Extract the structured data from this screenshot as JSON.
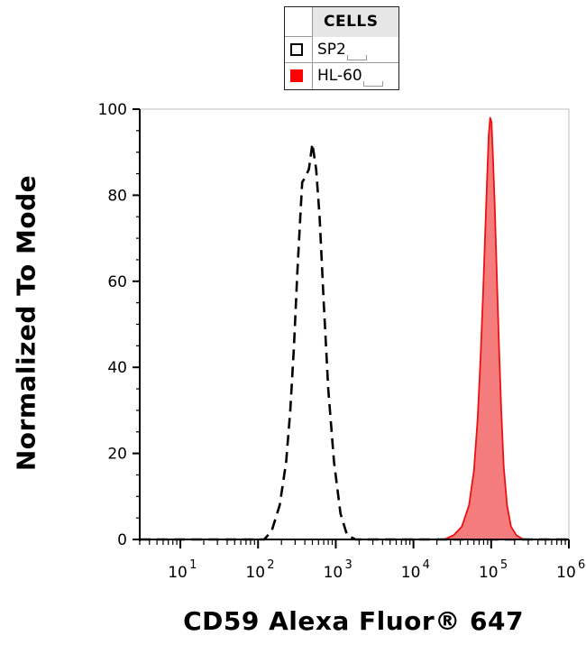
{
  "legend": {
    "title": "CELLS",
    "items": [
      {
        "label": "SP2",
        "style": "dashed-outline",
        "color": "#000000"
      },
      {
        "label": "HL-60",
        "style": "filled",
        "color": "#ff0000"
      }
    ]
  },
  "chart_data": {
    "type": "histogram",
    "xlabel": "CD59 Alexa Fluor® 647",
    "ylabel": "Normalized To Mode",
    "x_scale": "log",
    "xlim": [
      3,
      1000000
    ],
    "ylim": [
      0,
      100
    ],
    "x_ticks": [
      {
        "base": "10",
        "exp": "1"
      },
      {
        "base": "10",
        "exp": "2"
      },
      {
        "base": "10",
        "exp": "3"
      },
      {
        "base": "10",
        "exp": "4"
      },
      {
        "base": "10",
        "exp": "5"
      },
      {
        "base": "10",
        "exp": "6"
      }
    ],
    "y_ticks": [
      "0",
      "20",
      "40",
      "60",
      "80",
      "100"
    ],
    "series": [
      {
        "name": "SP2",
        "color": "#000000",
        "fill": "none",
        "dash": true,
        "points": [
          [
            3,
            0
          ],
          [
            15,
            0
          ],
          [
            50,
            0
          ],
          [
            120,
            0
          ],
          [
            150,
            2
          ],
          [
            190,
            8
          ],
          [
            230,
            18
          ],
          [
            260,
            30
          ],
          [
            290,
            45
          ],
          [
            320,
            62
          ],
          [
            350,
            75
          ],
          [
            370,
            83
          ],
          [
            400,
            84
          ],
          [
            450,
            86
          ],
          [
            500,
            92
          ],
          [
            560,
            86
          ],
          [
            620,
            75
          ],
          [
            700,
            55
          ],
          [
            800,
            35
          ],
          [
            950,
            18
          ],
          [
            1150,
            6
          ],
          [
            1400,
            1
          ],
          [
            1800,
            0
          ],
          [
            5000,
            0
          ],
          [
            20000,
            0
          ],
          [
            100000,
            0
          ],
          [
            1000000,
            0
          ]
        ]
      },
      {
        "name": "HL-60",
        "color": "#ee1111",
        "fill": "#f47c7c",
        "dash": false,
        "points": [
          [
            3,
            0
          ],
          [
            1000,
            0
          ],
          [
            10000,
            0
          ],
          [
            25000,
            0
          ],
          [
            33000,
            1
          ],
          [
            42000,
            3
          ],
          [
            52000,
            8
          ],
          [
            60000,
            16
          ],
          [
            67000,
            28
          ],
          [
            73000,
            42
          ],
          [
            79000,
            58
          ],
          [
            84000,
            72
          ],
          [
            89000,
            85
          ],
          [
            93000,
            94
          ],
          [
            97000,
            98
          ],
          [
            101000,
            97
          ],
          [
            105000,
            90
          ],
          [
            111000,
            78
          ],
          [
            118000,
            62
          ],
          [
            126000,
            45
          ],
          [
            135000,
            30
          ],
          [
            145000,
            17
          ],
          [
            160000,
            8
          ],
          [
            180000,
            3
          ],
          [
            210000,
            1
          ],
          [
            260000,
            0
          ],
          [
            1000000,
            0
          ]
        ]
      }
    ]
  }
}
